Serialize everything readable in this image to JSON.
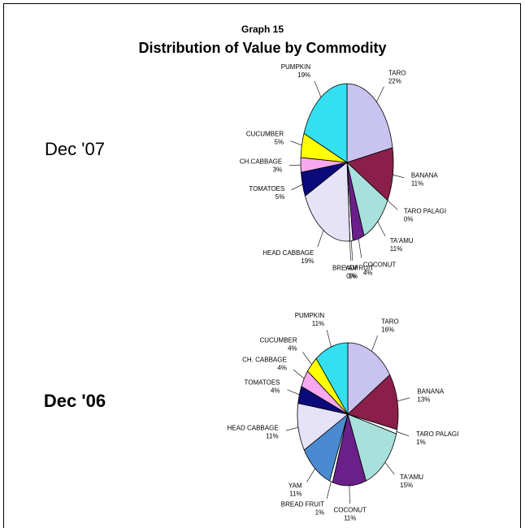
{
  "header": {
    "label": "Graph 15",
    "title": "Distribution of Value by Commodity"
  },
  "chart_data": [
    {
      "type": "pie",
      "title": "Dec '07",
      "categories": [
        "TARO",
        "BANANA",
        "TARO PALAGI",
        "TA'AMU",
        "COCONUT",
        "BREADFRUIT",
        "YAM",
        "HEAD CABBAGE",
        "TOMATOES",
        "CH.CABBAGE",
        "CUCUMBER",
        "PUMPKIN"
      ],
      "values": [
        22,
        11,
        0,
        11,
        4,
        1,
        0,
        19,
        5,
        3,
        5,
        19
      ],
      "value_labels": [
        "22%",
        "11%",
        "0%",
        "11%",
        "4%",
        "1%",
        "0%",
        "19%",
        "5%",
        "3%",
        "5%",
        "19%"
      ],
      "colors": [
        "#c9c3f0",
        "#8a1f4a",
        "#ffffff",
        "#a8e0dc",
        "#6a1f8a",
        "#ffffff",
        "#ffffff",
        "#e6e2f8",
        "#0a0a7a",
        "#f7a8ee",
        "#ffff00",
        "#33e0f0"
      ]
    },
    {
      "type": "pie",
      "title": "Dec '06",
      "categories": [
        "TARO",
        "BANANA",
        "TARO PALAGI",
        "TA'AMU",
        "COCONUT",
        "BREAD FRUIT",
        "YAM",
        "HEAD CABBAGE",
        "TOMATOES",
        "CH. CABBAGE",
        "CUCUMBER",
        "PUMPKIN"
      ],
      "values": [
        16,
        13,
        1,
        15,
        11,
        1,
        11,
        11,
        4,
        4,
        4,
        11
      ],
      "value_labels": [
        "16%",
        "13%",
        "1%",
        "15%",
        "11%",
        "1%",
        "11%",
        "11%",
        "4%",
        "4%",
        "4%",
        "11%"
      ],
      "colors": [
        "#c9c3f0",
        "#8a1f4a",
        "#ffffff",
        "#a8e0dc",
        "#6a1f8a",
        "#ffffff",
        "#4a8ad0",
        "#e6e2f8",
        "#0a0a7a",
        "#f7a8ee",
        "#ffff00",
        "#33e0f0"
      ]
    }
  ]
}
